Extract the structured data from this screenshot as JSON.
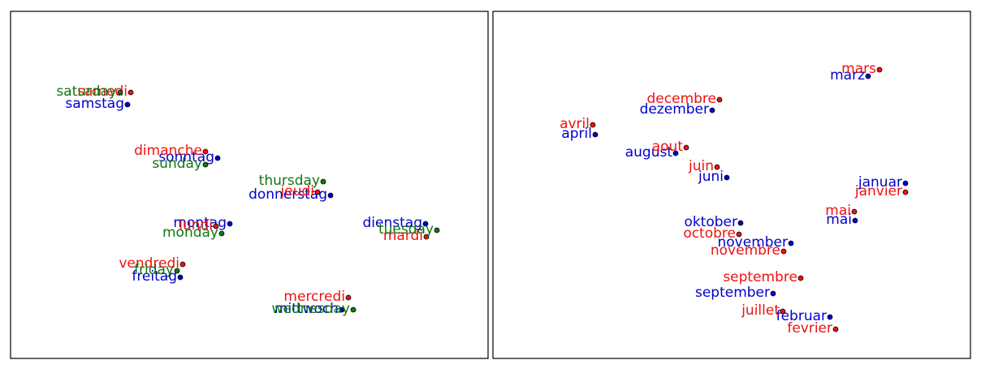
{
  "chart_data": [
    {
      "type": "scatter",
      "grid": false,
      "xlim": [
        0,
        588
      ],
      "ylim": [
        0,
        428
      ],
      "series": [
        {
          "color": "#0000cc",
          "points": [
            {
              "label": "samstag",
              "x": 144,
              "y": 115
            },
            {
              "label": "sonntag",
              "x": 255,
              "y": 181
            },
            {
              "label": "donnerstag",
              "x": 394,
              "y": 227
            },
            {
              "label": "montag",
              "x": 270,
              "y": 262
            },
            {
              "label": "dienstag",
              "x": 511,
              "y": 262
            },
            {
              "label": "freitag",
              "x": 209,
              "y": 328
            },
            {
              "label": "mittwoch",
              "x": 408,
              "y": 368
            }
          ]
        },
        {
          "color": "#ee1111",
          "points": [
            {
              "label": "samedi",
              "x": 148,
              "y": 100
            },
            {
              "label": "dimanche",
              "x": 240,
              "y": 173
            },
            {
              "label": "jeudi",
              "x": 378,
              "y": 223
            },
            {
              "label": "lundi",
              "x": 253,
              "y": 265
            },
            {
              "label": "mardi",
              "x": 512,
              "y": 278
            },
            {
              "label": "vendredi",
              "x": 212,
              "y": 312
            },
            {
              "label": "mercredi",
              "x": 416,
              "y": 353
            }
          ]
        },
        {
          "color": "#117711",
          "points": [
            {
              "label": "saturday",
              "x": 135,
              "y": 100
            },
            {
              "label": "sunday",
              "x": 240,
              "y": 189
            },
            {
              "label": "thursday",
              "x": 385,
              "y": 210
            },
            {
              "label": "monday",
              "x": 260,
              "y": 274
            },
            {
              "label": "tuesday",
              "x": 525,
              "y": 270
            },
            {
              "label": "friday",
              "x": 205,
              "y": 320
            },
            {
              "label": "wednesday",
              "x": 422,
              "y": 368
            }
          ]
        }
      ]
    },
    {
      "type": "scatter",
      "grid": false,
      "xlim": [
        0,
        588
      ],
      "ylim": [
        0,
        428
      ],
      "series": [
        {
          "color": "#0000cc",
          "points": [
            {
              "label": "marz",
              "x": 462,
              "y": 80
            },
            {
              "label": "dezember",
              "x": 270,
              "y": 122
            },
            {
              "label": "april",
              "x": 126,
              "y": 152
            },
            {
              "label": "august",
              "x": 225,
              "y": 175
            },
            {
              "label": "juni",
              "x": 288,
              "y": 205
            },
            {
              "label": "januar",
              "x": 508,
              "y": 212
            },
            {
              "label": "mai",
              "x": 446,
              "y": 258
            },
            {
              "label": "oktober",
              "x": 305,
              "y": 261
            },
            {
              "label": "november",
              "x": 367,
              "y": 286
            },
            {
              "label": "september",
              "x": 345,
              "y": 348
            },
            {
              "label": "februar",
              "x": 415,
              "y": 377
            }
          ]
        },
        {
          "color": "#ee1111",
          "points": [
            {
              "label": "mars",
              "x": 476,
              "y": 72
            },
            {
              "label": "decembre",
              "x": 279,
              "y": 109
            },
            {
              "label": "avril",
              "x": 123,
              "y": 140
            },
            {
              "label": "aout",
              "x": 238,
              "y": 168
            },
            {
              "label": "juin",
              "x": 276,
              "y": 192
            },
            {
              "label": "janvier",
              "x": 508,
              "y": 223
            },
            {
              "label": "mai",
              "x": 445,
              "y": 247
            },
            {
              "label": "octobre",
              "x": 303,
              "y": 275
            },
            {
              "label": "novembre",
              "x": 358,
              "y": 296
            },
            {
              "label": "septembre",
              "x": 379,
              "y": 329
            },
            {
              "label": "juillet",
              "x": 357,
              "y": 370
            },
            {
              "label": "fevrier",
              "x": 422,
              "y": 392
            }
          ]
        }
      ]
    }
  ]
}
